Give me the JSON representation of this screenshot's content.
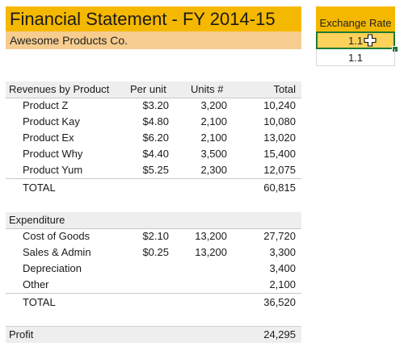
{
  "title": "Financial Statement - FY 2014-15",
  "company": "Awesome Products Co.",
  "exchange": {
    "label": "Exchange Rate",
    "input_value": "1.1",
    "value": "1.1"
  },
  "revenue": {
    "headers": {
      "name": "Revenues by Product",
      "per_unit": "Per unit",
      "units": "Units #",
      "total": "Total"
    },
    "rows": [
      {
        "name": "Product Z",
        "per_unit": "$3.20",
        "units": "3,200",
        "total": "10,240"
      },
      {
        "name": "Product Kay",
        "per_unit": "$4.80",
        "units": "2,100",
        "total": "10,080"
      },
      {
        "name": "Product Ex",
        "per_unit": "$6.20",
        "units": "2,100",
        "total": "13,020"
      },
      {
        "name": "Product Why",
        "per_unit": "$4.40",
        "units": "3,500",
        "total": "15,400"
      },
      {
        "name": "Product Yum",
        "per_unit": "$5.25",
        "units": "2,300",
        "total": "12,075"
      }
    ],
    "total_label": "TOTAL",
    "total_value": "60,815"
  },
  "expenditure": {
    "header": "Expenditure",
    "rows": [
      {
        "name": "Cost of Goods",
        "per_unit": "$2.10",
        "units": "13,200",
        "total": "27,720"
      },
      {
        "name": "Sales & Admin",
        "per_unit": "$0.25",
        "units": "13,200",
        "total": "3,300"
      },
      {
        "name": "Depreciation",
        "per_unit": "",
        "units": "",
        "total": "3,400"
      },
      {
        "name": "Other",
        "per_unit": "",
        "units": "",
        "total": "2,100"
      }
    ],
    "total_label": "TOTAL",
    "total_value": "36,520"
  },
  "profit": {
    "label": "Profit",
    "value": "24,295"
  },
  "colors": {
    "title_band": "#f5b800",
    "company_band": "#f6cc8f",
    "input_fill": "#fcd25a",
    "selection_border": "#1e7b34",
    "section_shade": "#eeeeee"
  },
  "icons": {
    "cursor": "excel-plus-cursor-icon"
  }
}
